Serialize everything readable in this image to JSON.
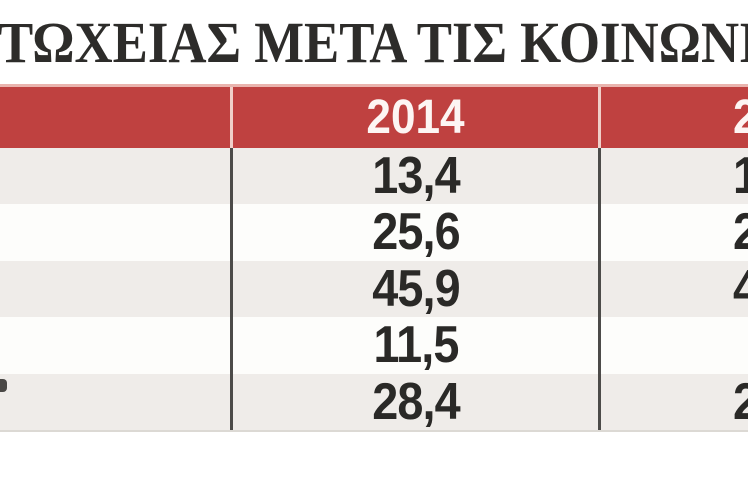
{
  "title": "ΤΩΧΕΙΑΣ ΜΕΤΑ ΤΙΣ ΚΟΙΝΩΝΙΚ",
  "colors": {
    "header_bg": "#bf4140",
    "header_top_edge": "#e9b4ae",
    "header_divider": "#f0cfc9",
    "header_text": "#fdf5f3",
    "row_alt_bg": "#efece9",
    "row_bg": "#fdfdfb",
    "body_divider": "#4c4b49",
    "value_text": "#2a2927",
    "title_text": "#2d2c2a",
    "page_bg": "#ffffff"
  },
  "table": {
    "header": {
      "label_col": "",
      "col_2014": "2014",
      "col_next_fragment": "2"
    },
    "rows": [
      {
        "label": "",
        "v2014": "13,4",
        "next_fragment": "1"
      },
      {
        "label": "",
        "v2014": "25,6",
        "next_fragment": "2"
      },
      {
        "label": "",
        "v2014": "45,9",
        "next_fragment": "4"
      },
      {
        "label": "",
        "v2014": "11,5",
        "next_fragment": ""
      },
      {
        "label": "",
        "v2014": "28,4",
        "next_fragment": "2"
      }
    ]
  },
  "chart_data": {
    "type": "table",
    "title": "ΤΩΧΕΙΑΣ ΜΕΤΑ ΤΙΣ ΚΟΙΝΩΝΙΚ",
    "columns": [
      "",
      "2014",
      "2"
    ],
    "rows": [
      [
        "",
        "13,4",
        "1"
      ],
      [
        "",
        "25,6",
        "2"
      ],
      [
        "",
        "45,9",
        "4"
      ],
      [
        "",
        "11,5",
        ""
      ],
      [
        "",
        "28,4",
        "2"
      ]
    ],
    "notes": "Image is cropped: left row-label column and rightmost year column are cut off at the image edges; only leading digit fragments of the right column are visible.",
    "layout": {
      "alternating_rows": true,
      "header_style": "red band, white bold text",
      "grid": "vertical dividers only"
    }
  }
}
